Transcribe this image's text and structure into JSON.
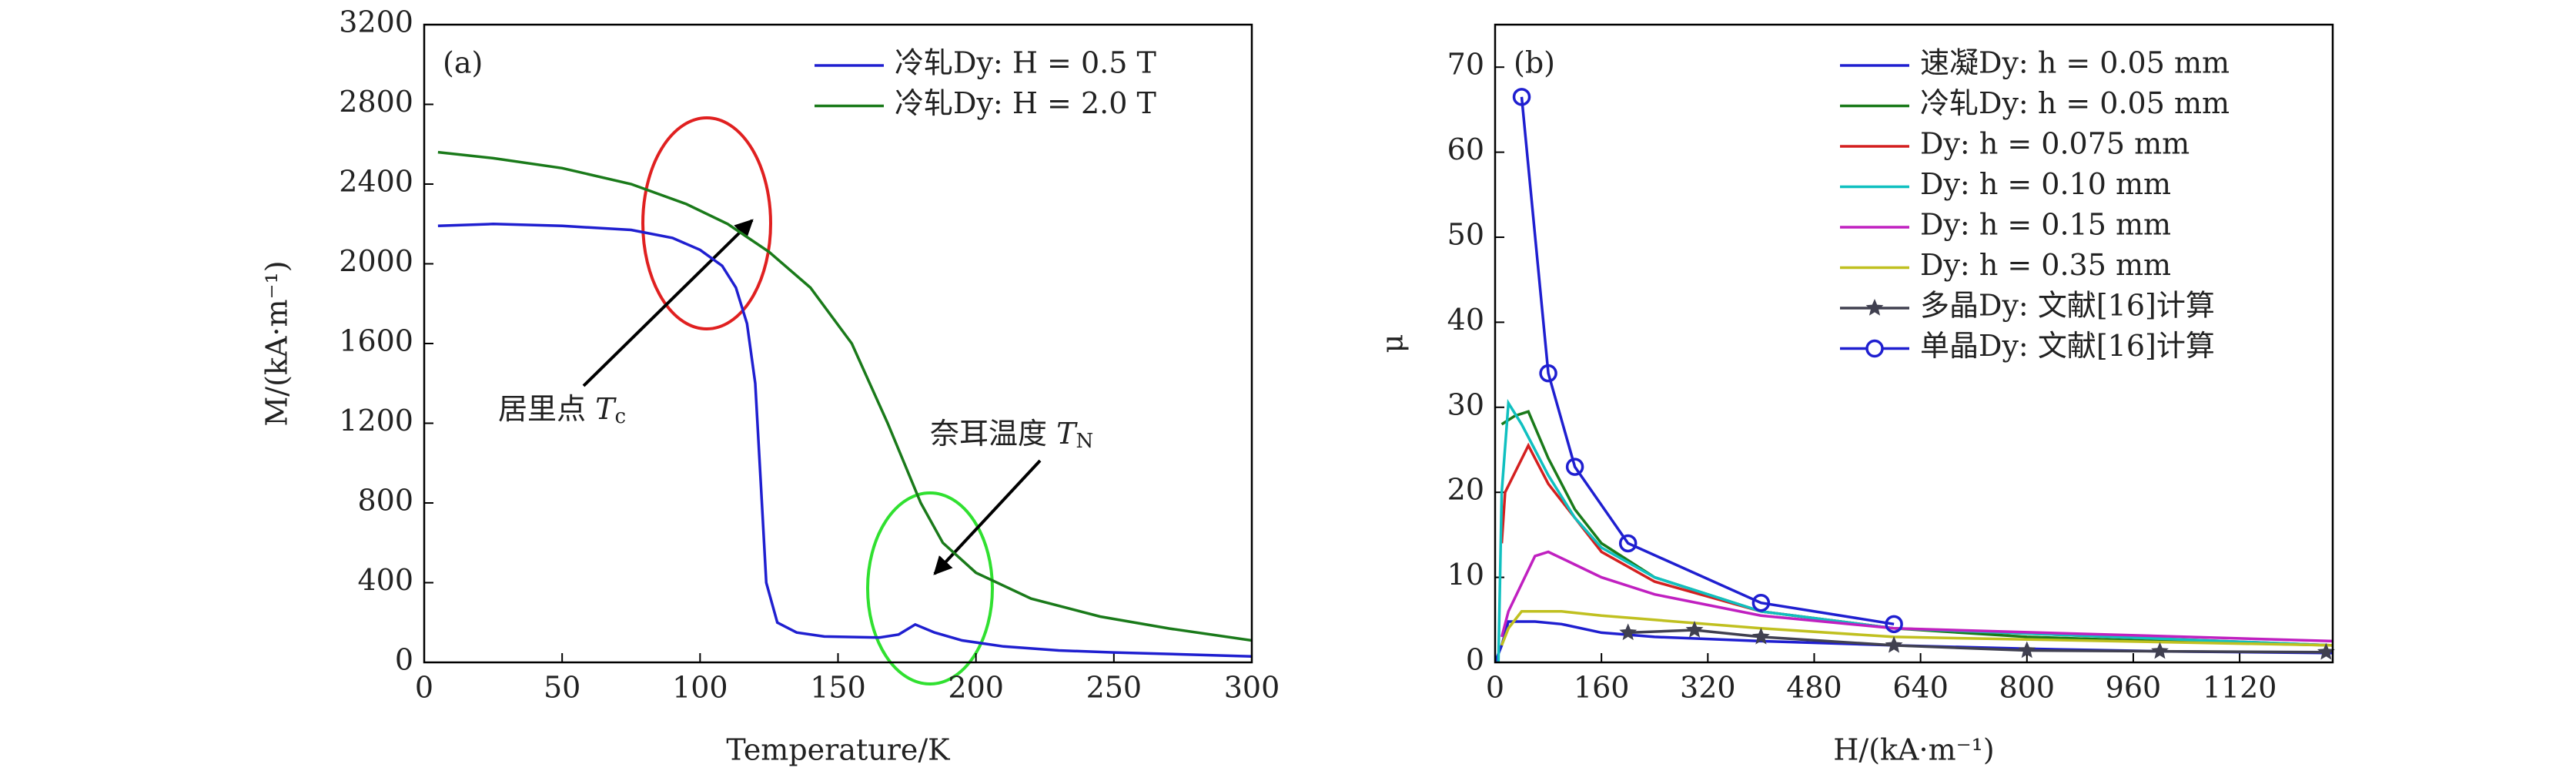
{
  "chart_data": [
    {
      "type": "line",
      "panel": "(a)",
      "xlabel": "Temperature/K",
      "ylabel": "M/(kA·m⁻¹)",
      "xlim": [
        0,
        300
      ],
      "ylim": [
        0,
        3200
      ],
      "xticks": [
        0,
        50,
        100,
        150,
        200,
        250,
        300
      ],
      "yticks": [
        0,
        400,
        800,
        1200,
        1600,
        2000,
        2400,
        2800,
        3200
      ],
      "grid": false,
      "legend": "upper right",
      "series": [
        {
          "name": "冷轧Dy: H = 0.5 T",
          "color": "#1f1fd0",
          "x": [
            5,
            25,
            50,
            75,
            90,
            100,
            108,
            113,
            117,
            120,
            122,
            124,
            128,
            135,
            145,
            165,
            172,
            178,
            185,
            195,
            210,
            230,
            250,
            275,
            300
          ],
          "values": [
            2190,
            2200,
            2190,
            2170,
            2130,
            2070,
            1990,
            1880,
            1700,
            1400,
            900,
            400,
            200,
            150,
            130,
            125,
            140,
            190,
            150,
            110,
            80,
            60,
            50,
            40,
            30
          ]
        },
        {
          "name": "冷轧Dy: H = 2.0 T",
          "color": "#1a7a1a",
          "x": [
            5,
            25,
            50,
            75,
            95,
            110,
            125,
            140,
            155,
            168,
            180,
            188,
            200,
            220,
            245,
            270,
            300
          ],
          "values": [
            2560,
            2530,
            2480,
            2400,
            2300,
            2200,
            2060,
            1880,
            1600,
            1200,
            800,
            600,
            450,
            320,
            230,
            170,
            110
          ]
        }
      ],
      "annotations": [
        {
          "text": "居里点 ",
          "symbol": "T",
          "subscript": "c"
        },
        {
          "text": "奈耳温度 ",
          "symbol": "T",
          "subscript": "N"
        }
      ]
    },
    {
      "type": "line",
      "panel": "(b)",
      "xlabel": "H/(kA·m⁻¹)",
      "ylabel": "μ",
      "xlim": [
        0,
        1260
      ],
      "ylim": [
        0,
        75
      ],
      "xticks": [
        0,
        160,
        320,
        480,
        640,
        800,
        960,
        1120
      ],
      "yticks": [
        0,
        10,
        20,
        30,
        40,
        50,
        60,
        70
      ],
      "grid": false,
      "legend": "upper right",
      "series": [
        {
          "name": "速凝Dy: h = 0.05 mm",
          "color": "#1f1fd0",
          "x": [
            0,
            10,
            20,
            60,
            100,
            160,
            240,
            400,
            600,
            800,
            1000,
            1260
          ],
          "values": [
            0,
            2,
            4.8,
            4.8,
            4.5,
            3.5,
            3,
            2.5,
            2,
            1.6,
            1.3,
            1.1
          ]
        },
        {
          "name": "冷轧Dy: h = 0.05 mm",
          "color": "#1a7a1a",
          "x": [
            10,
            30,
            50,
            80,
            120,
            160,
            240,
            400,
            600,
            800,
            1000,
            1260
          ],
          "values": [
            28,
            29,
            29.5,
            24,
            18,
            14,
            10,
            6,
            4,
            3,
            2.5,
            2
          ]
        },
        {
          "name": "Dy: h = 0.075 mm",
          "color": "#d42020",
          "x": [
            10,
            15,
            50,
            80,
            120,
            160,
            240,
            400,
            600,
            1260
          ],
          "values": [
            14,
            20,
            25.5,
            21,
            17,
            13,
            9.5,
            6,
            4,
            2
          ]
        },
        {
          "name": "Dy: h = 0.10 mm",
          "color": "#10c0c0",
          "x": [
            5,
            10,
            20,
            40,
            80,
            120,
            160,
            240,
            400,
            600,
            1260
          ],
          "values": [
            0,
            20,
            30.5,
            28,
            22,
            17,
            13.5,
            10,
            6,
            4,
            2
          ]
        },
        {
          "name": "Dy: h = 0.15 mm",
          "color": "#c020c0",
          "x": [
            10,
            20,
            60,
            80,
            120,
            160,
            240,
            400,
            600,
            1260
          ],
          "values": [
            3,
            6,
            12.5,
            13,
            11.5,
            10,
            8,
            5.5,
            4,
            2.5
          ]
        },
        {
          "name": "Dy: h = 0.35 mm",
          "color": "#c0c020",
          "x": [
            10,
            20,
            40,
            100,
            160,
            240,
            400,
            600,
            1260
          ],
          "values": [
            2,
            4,
            6,
            6,
            5.5,
            5,
            4,
            3,
            2
          ]
        },
        {
          "name": "多晶Dy: 文献[16]计算",
          "color": "#404050",
          "marker": "star",
          "x": [
            200,
            300,
            400,
            600,
            800,
            1000,
            1250
          ],
          "values": [
            3.5,
            3.8,
            3,
            2,
            1.4,
            1.3,
            1.2
          ]
        },
        {
          "name": "单晶Dy: 文献[16]计算",
          "color": "#1f1fd0",
          "marker": "circle",
          "x": [
            40,
            80,
            120,
            200,
            400,
            600
          ],
          "values": [
            66.5,
            34,
            23,
            14,
            7,
            4.5
          ]
        }
      ]
    }
  ]
}
